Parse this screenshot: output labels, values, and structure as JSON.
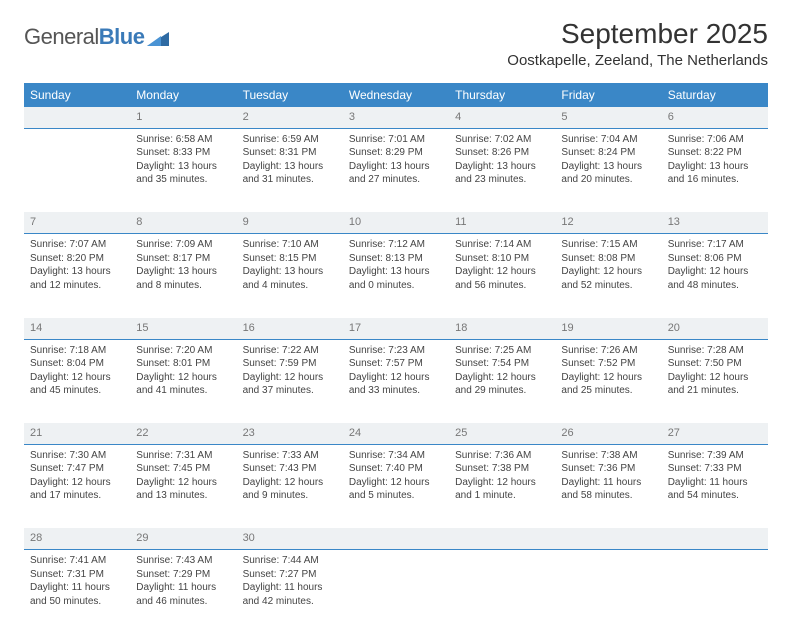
{
  "logo": {
    "part1": "General",
    "part2": "Blue"
  },
  "title": "September 2025",
  "subtitle": "Oostkapelle, Zeeland, The Netherlands",
  "colors": {
    "header_bg": "#3a87c7",
    "header_text": "#ffffff",
    "daynum_bg": "#eef1f3",
    "daynum_text": "#777777",
    "body_text": "#444444",
    "accent_line": "#3a87c7",
    "logo_gray": "#555555",
    "logo_blue": "#3a7ab8"
  },
  "weekdays": [
    "Sunday",
    "Monday",
    "Tuesday",
    "Wednesday",
    "Thursday",
    "Friday",
    "Saturday"
  ],
  "weeks": [
    {
      "nums": [
        "",
        "1",
        "2",
        "3",
        "4",
        "5",
        "6"
      ],
      "cells": [
        null,
        {
          "sunrise": "Sunrise: 6:58 AM",
          "sunset": "Sunset: 8:33 PM",
          "day1": "Daylight: 13 hours",
          "day2": "and 35 minutes."
        },
        {
          "sunrise": "Sunrise: 6:59 AM",
          "sunset": "Sunset: 8:31 PM",
          "day1": "Daylight: 13 hours",
          "day2": "and 31 minutes."
        },
        {
          "sunrise": "Sunrise: 7:01 AM",
          "sunset": "Sunset: 8:29 PM",
          "day1": "Daylight: 13 hours",
          "day2": "and 27 minutes."
        },
        {
          "sunrise": "Sunrise: 7:02 AM",
          "sunset": "Sunset: 8:26 PM",
          "day1": "Daylight: 13 hours",
          "day2": "and 23 minutes."
        },
        {
          "sunrise": "Sunrise: 7:04 AM",
          "sunset": "Sunset: 8:24 PM",
          "day1": "Daylight: 13 hours",
          "day2": "and 20 minutes."
        },
        {
          "sunrise": "Sunrise: 7:06 AM",
          "sunset": "Sunset: 8:22 PM",
          "day1": "Daylight: 13 hours",
          "day2": "and 16 minutes."
        }
      ]
    },
    {
      "nums": [
        "7",
        "8",
        "9",
        "10",
        "11",
        "12",
        "13"
      ],
      "cells": [
        {
          "sunrise": "Sunrise: 7:07 AM",
          "sunset": "Sunset: 8:20 PM",
          "day1": "Daylight: 13 hours",
          "day2": "and 12 minutes."
        },
        {
          "sunrise": "Sunrise: 7:09 AM",
          "sunset": "Sunset: 8:17 PM",
          "day1": "Daylight: 13 hours",
          "day2": "and 8 minutes."
        },
        {
          "sunrise": "Sunrise: 7:10 AM",
          "sunset": "Sunset: 8:15 PM",
          "day1": "Daylight: 13 hours",
          "day2": "and 4 minutes."
        },
        {
          "sunrise": "Sunrise: 7:12 AM",
          "sunset": "Sunset: 8:13 PM",
          "day1": "Daylight: 13 hours",
          "day2": "and 0 minutes."
        },
        {
          "sunrise": "Sunrise: 7:14 AM",
          "sunset": "Sunset: 8:10 PM",
          "day1": "Daylight: 12 hours",
          "day2": "and 56 minutes."
        },
        {
          "sunrise": "Sunrise: 7:15 AM",
          "sunset": "Sunset: 8:08 PM",
          "day1": "Daylight: 12 hours",
          "day2": "and 52 minutes."
        },
        {
          "sunrise": "Sunrise: 7:17 AM",
          "sunset": "Sunset: 8:06 PM",
          "day1": "Daylight: 12 hours",
          "day2": "and 48 minutes."
        }
      ]
    },
    {
      "nums": [
        "14",
        "15",
        "16",
        "17",
        "18",
        "19",
        "20"
      ],
      "cells": [
        {
          "sunrise": "Sunrise: 7:18 AM",
          "sunset": "Sunset: 8:04 PM",
          "day1": "Daylight: 12 hours",
          "day2": "and 45 minutes."
        },
        {
          "sunrise": "Sunrise: 7:20 AM",
          "sunset": "Sunset: 8:01 PM",
          "day1": "Daylight: 12 hours",
          "day2": "and 41 minutes."
        },
        {
          "sunrise": "Sunrise: 7:22 AM",
          "sunset": "Sunset: 7:59 PM",
          "day1": "Daylight: 12 hours",
          "day2": "and 37 minutes."
        },
        {
          "sunrise": "Sunrise: 7:23 AM",
          "sunset": "Sunset: 7:57 PM",
          "day1": "Daylight: 12 hours",
          "day2": "and 33 minutes."
        },
        {
          "sunrise": "Sunrise: 7:25 AM",
          "sunset": "Sunset: 7:54 PM",
          "day1": "Daylight: 12 hours",
          "day2": "and 29 minutes."
        },
        {
          "sunrise": "Sunrise: 7:26 AM",
          "sunset": "Sunset: 7:52 PM",
          "day1": "Daylight: 12 hours",
          "day2": "and 25 minutes."
        },
        {
          "sunrise": "Sunrise: 7:28 AM",
          "sunset": "Sunset: 7:50 PM",
          "day1": "Daylight: 12 hours",
          "day2": "and 21 minutes."
        }
      ]
    },
    {
      "nums": [
        "21",
        "22",
        "23",
        "24",
        "25",
        "26",
        "27"
      ],
      "cells": [
        {
          "sunrise": "Sunrise: 7:30 AM",
          "sunset": "Sunset: 7:47 PM",
          "day1": "Daylight: 12 hours",
          "day2": "and 17 minutes."
        },
        {
          "sunrise": "Sunrise: 7:31 AM",
          "sunset": "Sunset: 7:45 PM",
          "day1": "Daylight: 12 hours",
          "day2": "and 13 minutes."
        },
        {
          "sunrise": "Sunrise: 7:33 AM",
          "sunset": "Sunset: 7:43 PM",
          "day1": "Daylight: 12 hours",
          "day2": "and 9 minutes."
        },
        {
          "sunrise": "Sunrise: 7:34 AM",
          "sunset": "Sunset: 7:40 PM",
          "day1": "Daylight: 12 hours",
          "day2": "and 5 minutes."
        },
        {
          "sunrise": "Sunrise: 7:36 AM",
          "sunset": "Sunset: 7:38 PM",
          "day1": "Daylight: 12 hours",
          "day2": "and 1 minute."
        },
        {
          "sunrise": "Sunrise: 7:38 AM",
          "sunset": "Sunset: 7:36 PM",
          "day1": "Daylight: 11 hours",
          "day2": "and 58 minutes."
        },
        {
          "sunrise": "Sunrise: 7:39 AM",
          "sunset": "Sunset: 7:33 PM",
          "day1": "Daylight: 11 hours",
          "day2": "and 54 minutes."
        }
      ]
    },
    {
      "nums": [
        "28",
        "29",
        "30",
        "",
        "",
        "",
        ""
      ],
      "cells": [
        {
          "sunrise": "Sunrise: 7:41 AM",
          "sunset": "Sunset: 7:31 PM",
          "day1": "Daylight: 11 hours",
          "day2": "and 50 minutes."
        },
        {
          "sunrise": "Sunrise: 7:43 AM",
          "sunset": "Sunset: 7:29 PM",
          "day1": "Daylight: 11 hours",
          "day2": "and 46 minutes."
        },
        {
          "sunrise": "Sunrise: 7:44 AM",
          "sunset": "Sunset: 7:27 PM",
          "day1": "Daylight: 11 hours",
          "day2": "and 42 minutes."
        },
        null,
        null,
        null,
        null
      ]
    }
  ]
}
